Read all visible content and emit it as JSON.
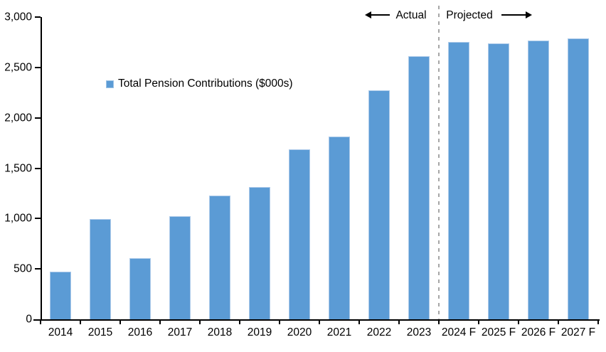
{
  "chart_data": {
    "type": "bar",
    "legend": {
      "label": "Total Pension Contributions ($000s)",
      "swatch_color": "#5B9BD5",
      "position": "inside-upper-left"
    },
    "categories": [
      "2014",
      "2015",
      "2016",
      "2017",
      "2018",
      "2019",
      "2020",
      "2021",
      "2022",
      "2023",
      "2024 F",
      "2025 F",
      "2026 F",
      "2027 F"
    ],
    "values": [
      470,
      995,
      605,
      1020,
      1230,
      1315,
      1685,
      1815,
      2275,
      2610,
      2750,
      2740,
      2765,
      2790
    ],
    "ylim": [
      0,
      3000
    ],
    "ytick_step": 500,
    "ytick_labels": [
      "0",
      "500",
      "1,000",
      "1,500",
      "2,000",
      "2,500",
      "3,000"
    ],
    "grid": false,
    "annotations": {
      "actual_label": "Actual",
      "projected_label": "Projected",
      "divider_after_category": "2023"
    },
    "colors": {
      "bar": "#5B9BD5",
      "bar_edge": "#AECBEA",
      "divider": "#A6A6A6",
      "axis": "#000000",
      "text": "#000000",
      "background": "#FFFFFF"
    }
  }
}
